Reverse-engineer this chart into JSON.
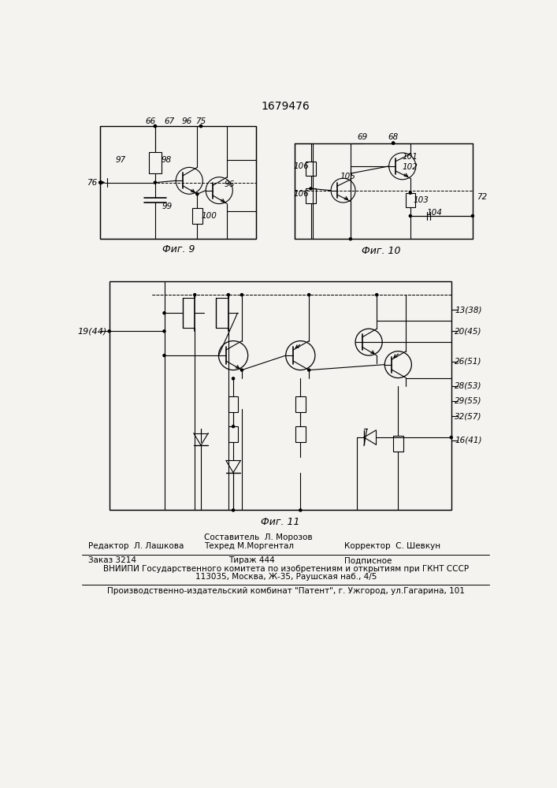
{
  "patent_number": "1679476",
  "bg_color": "#f5f3ef",
  "footer_editor": "Редактор  Л. Лашкова",
  "footer_comp": "Составитель  Л. Морозов",
  "footer_tech": "Техред М.Моргентал",
  "footer_corr": "Корректор  С. Шевкун",
  "footer_order": "Заказ 3214",
  "footer_circ": "Тираж 444",
  "footer_sub": "Подписное",
  "footer_vniip1": "ВНИИПИ Государственного комитета по изобретениям и открытиям при ГКНТ СССР",
  "footer_vniip2": "113035, Москва, Ж-35, Раушская наб., 4/5",
  "footer_patent": "Производственно-издательский комбинат \"Патент\", г. Ужгород, ул.Гагарина, 101"
}
